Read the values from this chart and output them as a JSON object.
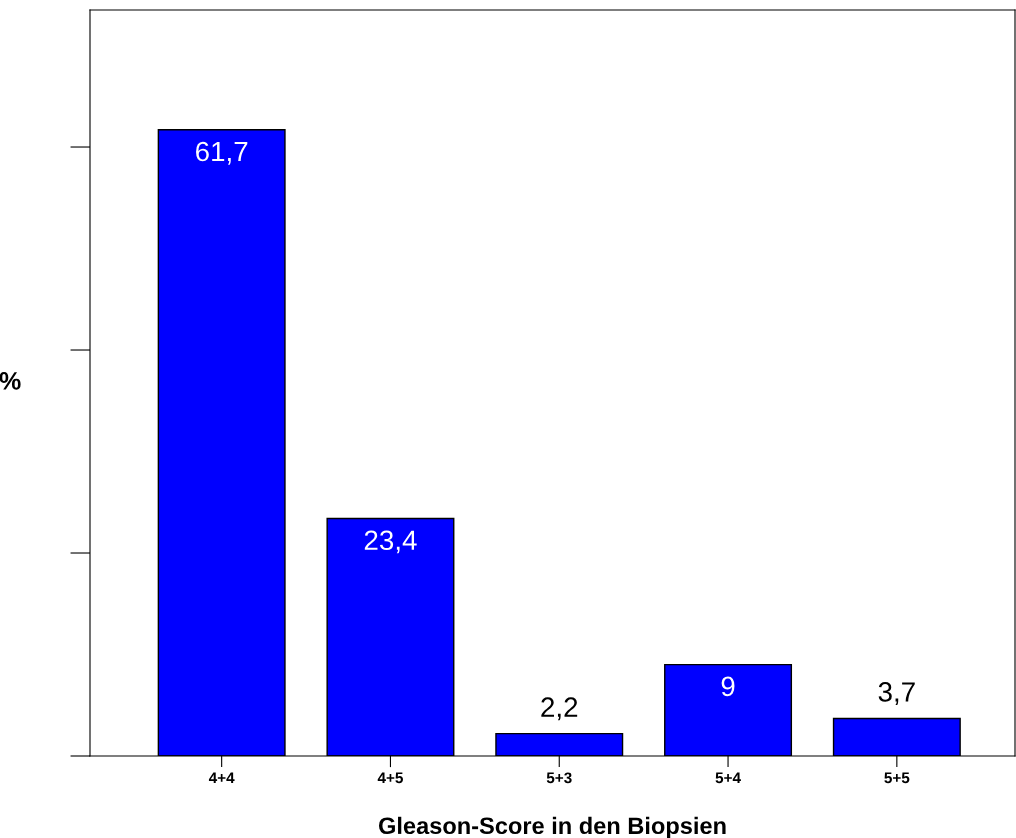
{
  "chart_data": {
    "type": "bar",
    "categories": [
      "4+4",
      "4+5",
      "5+3",
      "5+4",
      "5+5"
    ],
    "values": [
      61.7,
      23.4,
      2.2,
      9,
      3.7
    ],
    "value_labels": [
      "61,7",
      "23,4",
      "2,2",
      "9",
      "3,7"
    ],
    "color": "#0000ff",
    "xlabel": "Gleason-Score in den Biopsien",
    "ylabel": "%",
    "ylim": [
      0,
      73.5
    ],
    "grid": false,
    "legend": false
  }
}
